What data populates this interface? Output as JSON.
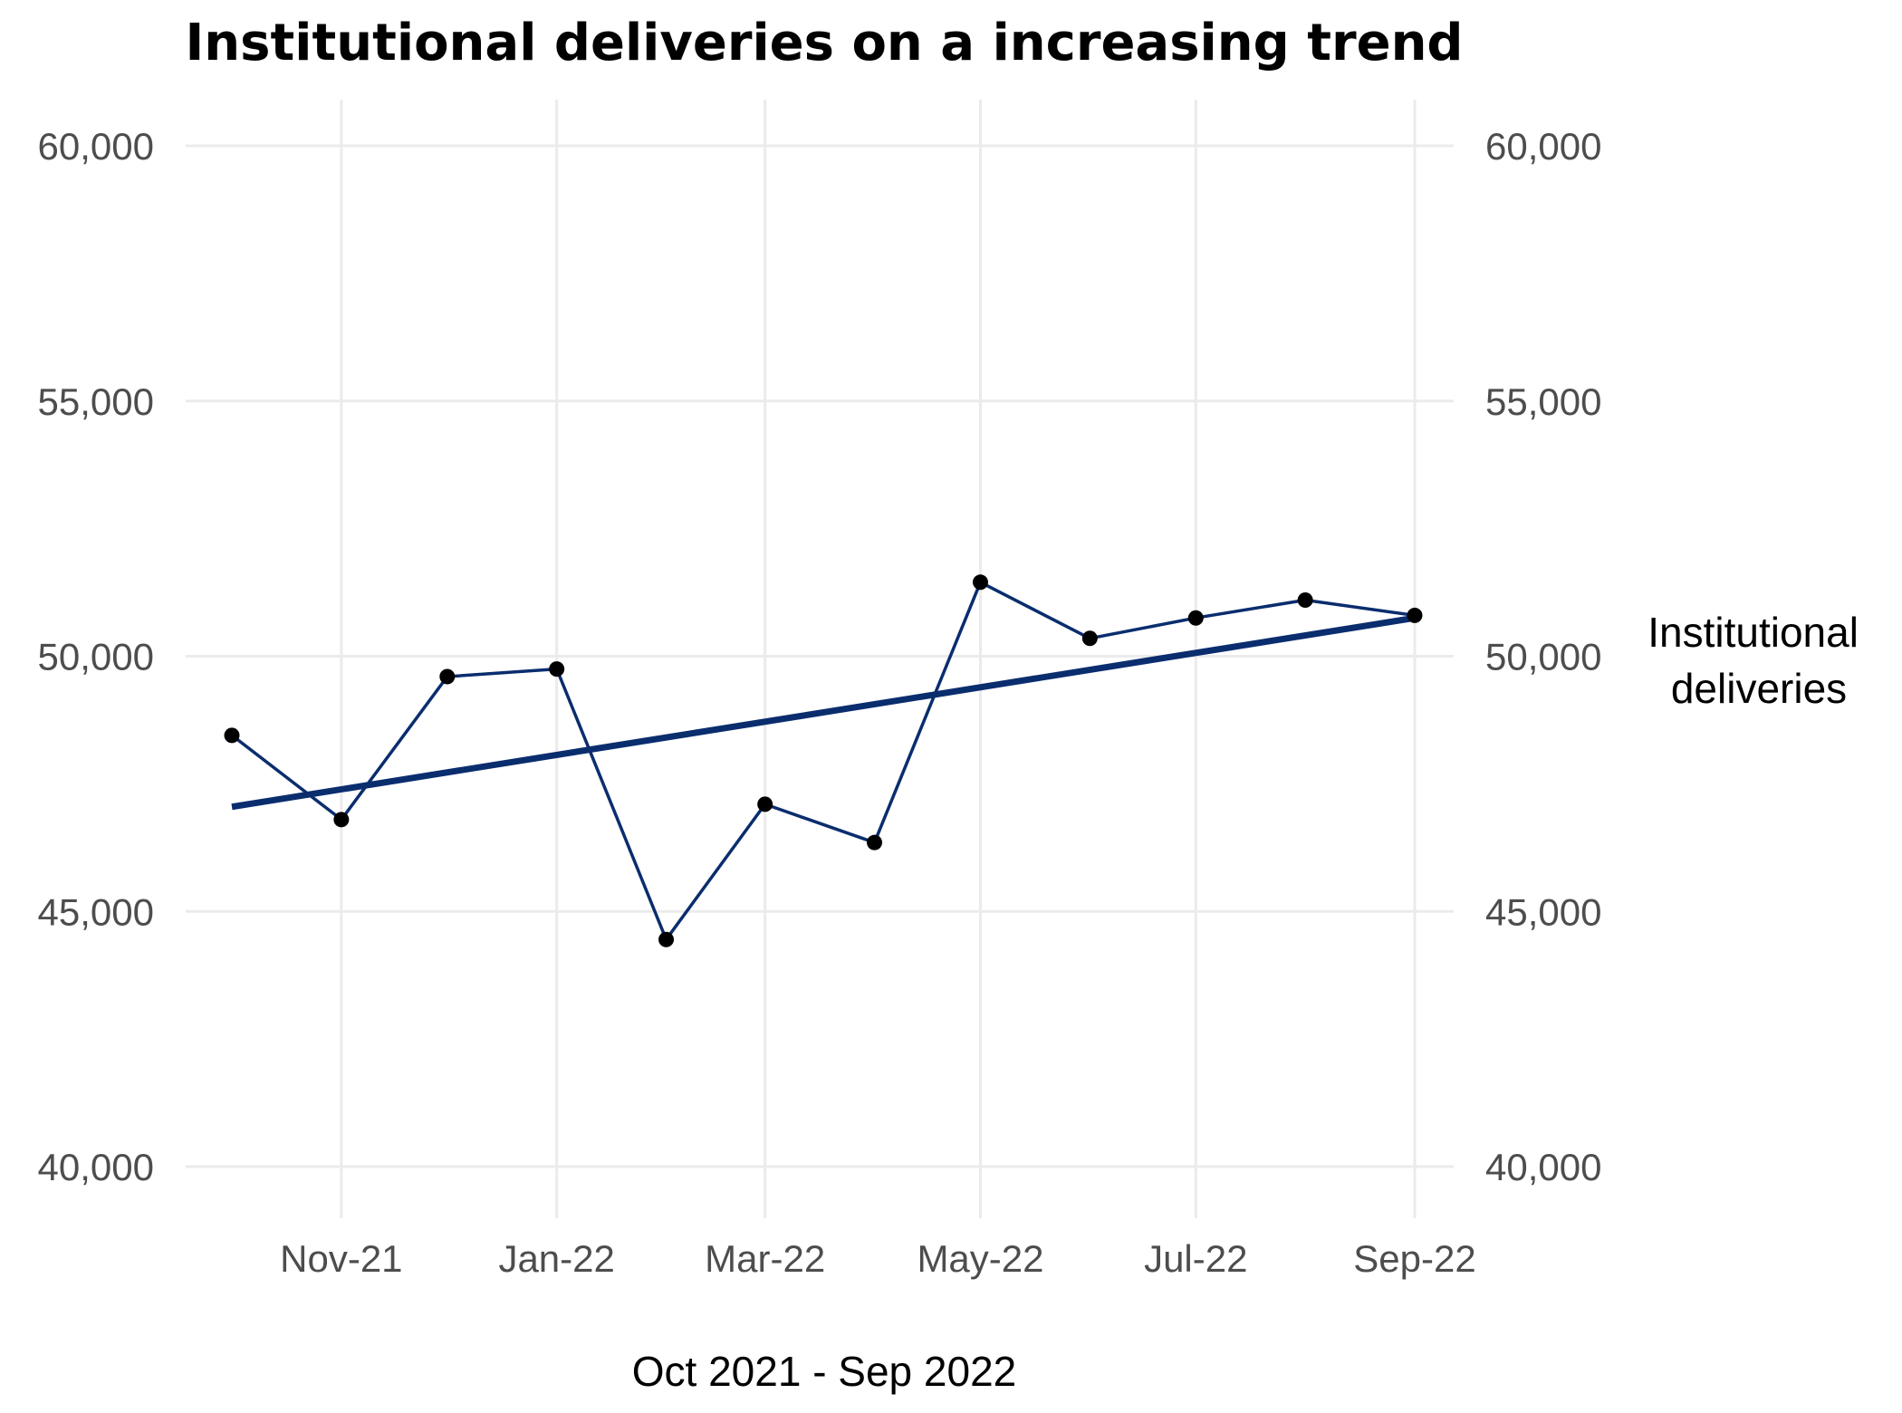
{
  "chart_data": {
    "type": "line",
    "title": "Institutional deliveries on a increasing trend",
    "xlabel": "Oct 2021 - Sep 2022",
    "ylabel": "",
    "ylim": [
      40000,
      60000
    ],
    "yticks": [
      40000,
      45000,
      50000,
      55000,
      60000
    ],
    "ytick_labels": [
      "40,000",
      "45,000",
      "50,000",
      "55,000",
      "60,000"
    ],
    "secondary_y_axis": true,
    "x_dates": [
      "2021-10-01",
      "2021-11-01",
      "2021-12-01",
      "2022-01-01",
      "2022-02-01",
      "2022-03-01",
      "2022-04-01",
      "2022-05-01",
      "2022-06-01",
      "2022-07-01",
      "2022-08-01",
      "2022-09-01"
    ],
    "xtick_dates": [
      "2021-11-01",
      "2022-01-01",
      "2022-03-01",
      "2022-05-01",
      "2022-07-01",
      "2022-09-01"
    ],
    "xtick_labels": [
      "Nov-21",
      "Jan-22",
      "Mar-22",
      "May-22",
      "Jul-22",
      "Sep-22"
    ],
    "grid": true,
    "series": [
      {
        "name": "Institutional deliveries",
        "name_lines": [
          "Institutional",
          "deliveries"
        ],
        "color": "#0a2d6e",
        "marker_color": "#000000",
        "values": [
          48450,
          46800,
          49600,
          49750,
          44450,
          47100,
          46350,
          51450,
          50350,
          50750,
          51100,
          50800
        ]
      }
    ],
    "trend_line": {
      "type": "linear",
      "color": "#0a2d6e",
      "start": [
        "2021-10-01",
        47050
      ],
      "end": [
        "2022-09-01",
        50750
      ]
    }
  }
}
